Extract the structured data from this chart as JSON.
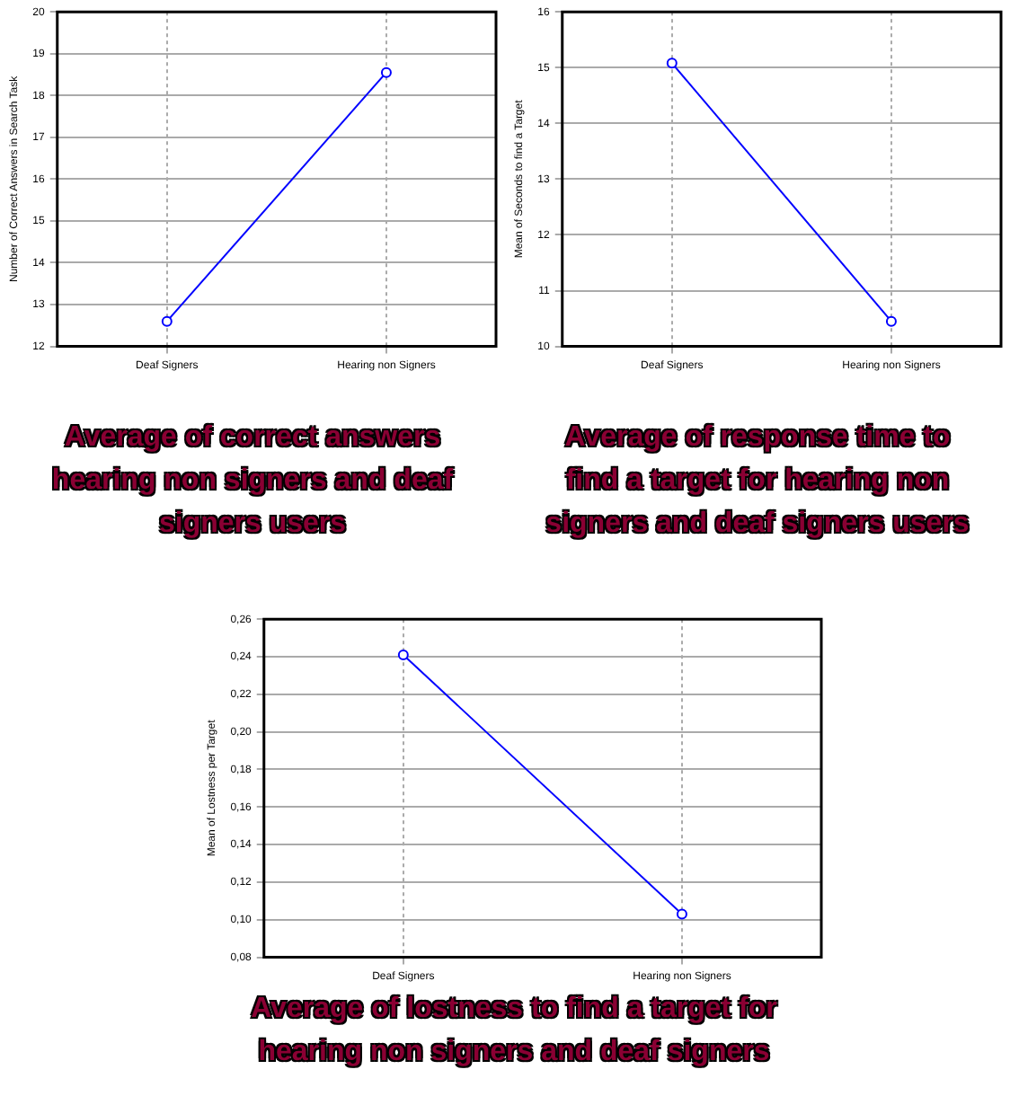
{
  "chart_data": [
    {
      "type": "line",
      "title": "Average of correct answers hearing non signers and deaf signers users",
      "ylabel": "Number of Correct Answers in Search Task",
      "categories": [
        "Deaf Signers",
        "Hearing non Signers"
      ],
      "series": [
        {
          "color": "#0000ff",
          "values": [
            12.6,
            18.55
          ]
        }
      ],
      "ylim": [
        12,
        20
      ],
      "yticks": [
        12,
        13,
        14,
        15,
        16,
        17,
        18,
        19,
        20
      ],
      "grid": true,
      "marker": "circle",
      "legend": false
    },
    {
      "type": "line",
      "title": "Average of response time to find a target for hearing non signers and deaf signers users",
      "ylabel": "Mean of Seconds to find a Target",
      "categories": [
        "Deaf Signers",
        "Hearing non Signers"
      ],
      "series": [
        {
          "color": "#0000ff",
          "values": [
            15.08,
            10.45
          ]
        }
      ],
      "ylim": [
        10,
        16
      ],
      "yticks": [
        10,
        11,
        12,
        13,
        14,
        15,
        16
      ],
      "grid": true,
      "marker": "circle",
      "legend": false
    },
    {
      "type": "line",
      "title": "Average of lostness to find a target for hearing non signers and deaf signers",
      "ylabel": "Mean of Lostness per Target",
      "categories": [
        "Deaf Signers",
        "Hearing non Signers"
      ],
      "series": [
        {
          "color": "#0000ff",
          "values": [
            0.241,
            0.103
          ]
        }
      ],
      "ylim": [
        0.08,
        0.26
      ],
      "yticks": [
        {
          "value": 0.08,
          "label": "0,08"
        },
        {
          "value": 0.1,
          "label": "0,10"
        },
        {
          "value": 0.12,
          "label": "0,12"
        },
        {
          "value": 0.14,
          "label": "0,14"
        },
        {
          "value": 0.16,
          "label": "0,16"
        },
        {
          "value": 0.18,
          "label": "0,18"
        },
        {
          "value": 0.2,
          "label": "0,20"
        },
        {
          "value": 0.22,
          "label": "0,22"
        },
        {
          "value": 0.24,
          "label": "0,24"
        },
        {
          "value": 0.26,
          "label": "0,26"
        }
      ],
      "grid": true,
      "marker": "circle",
      "legend": false
    }
  ]
}
